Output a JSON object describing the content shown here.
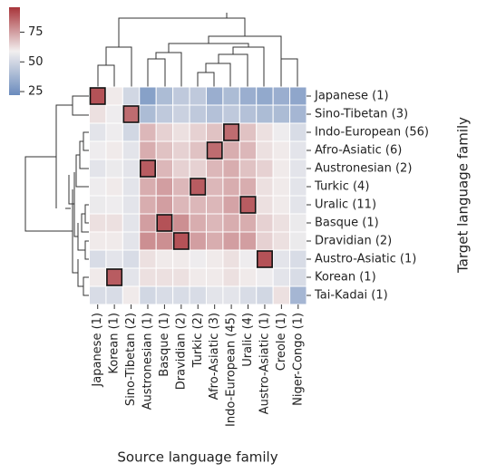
{
  "chart_data": {
    "type": "heatmap",
    "xlabel": "Source language family",
    "ylabel": "Target language family",
    "columns": [
      "Japanese (1)",
      "Korean (1)",
      "Sino-Tibetan (2)",
      "Austronesian (1)",
      "Basque (1)",
      "Dravidian (2)",
      "Turkic (2)",
      "Afro-Asiatic (3)",
      "Indo-European (45)",
      "Uralic (4)",
      "Austro-Asiatic (1)",
      "Creole (1)",
      "Niger-Congo (1)"
    ],
    "rows": [
      "Japanese (1)",
      "Sino-Tibetan (3)",
      "Indo-European (56)",
      "Afro-Asiatic (6)",
      "Austronesian (2)",
      "Turkic (4)",
      "Uralic (11)",
      "Basque (1)",
      "Dravidian (2)",
      "Austro-Asiatic (1)",
      "Korean (1)",
      "Tai-Kadai (1)"
    ],
    "values": [
      [
        90,
        60,
        50,
        30,
        40,
        45,
        45,
        35,
        40,
        35,
        33,
        35,
        32
      ],
      [
        62,
        58,
        85,
        40,
        45,
        48,
        45,
        42,
        45,
        42,
        40,
        40,
        38
      ],
      [
        55,
        58,
        50,
        70,
        65,
        62,
        65,
        68,
        85,
        68,
        62,
        58,
        52
      ],
      [
        58,
        60,
        55,
        72,
        68,
        65,
        68,
        85,
        72,
        70,
        62,
        60,
        55
      ],
      [
        55,
        57,
        55,
        88,
        70,
        65,
        65,
        70,
        72,
        68,
        65,
        60,
        55
      ],
      [
        58,
        60,
        55,
        72,
        75,
        70,
        88,
        70,
        72,
        72,
        62,
        60,
        55
      ],
      [
        57,
        58,
        55,
        72,
        75,
        70,
        70,
        70,
        74,
        88,
        62,
        60,
        55
      ],
      [
        62,
        62,
        55,
        75,
        90,
        78,
        72,
        70,
        72,
        72,
        65,
        62,
        57
      ],
      [
        60,
        60,
        55,
        78,
        78,
        90,
        75,
        72,
        75,
        75,
        65,
        62,
        57
      ],
      [
        52,
        55,
        52,
        62,
        60,
        60,
        58,
        60,
        62,
        58,
        90,
        55,
        52
      ],
      [
        60,
        88,
        55,
        62,
        62,
        62,
        60,
        60,
        62,
        60,
        58,
        55,
        52
      ],
      [
        52,
        52,
        60,
        50,
        52,
        52,
        52,
        55,
        55,
        52,
        50,
        62,
        38
      ]
    ],
    "highlight": [
      0,
      2,
      8,
      7,
      3,
      6,
      9,
      4,
      5,
      10,
      1,
      null
    ],
    "clim": [
      22,
      96
    ],
    "cticks": [
      25,
      50,
      75
    ],
    "colors": [
      "#6a8bbd",
      "#f2efef",
      "#a8343a"
    ]
  }
}
